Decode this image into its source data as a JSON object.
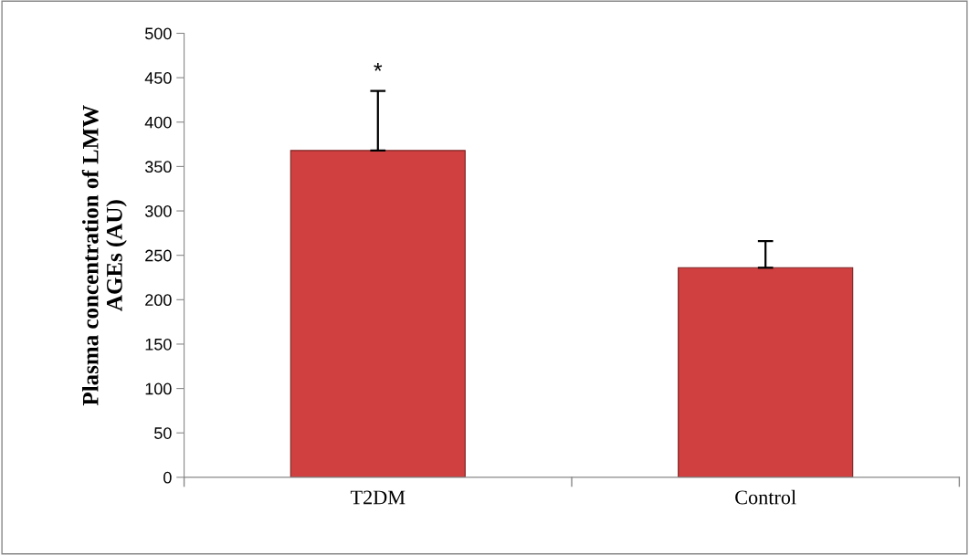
{
  "chart_data": {
    "type": "bar",
    "ylabel": "Plasma concentration of LMW\nAGEs (AU)",
    "categories": [
      "T2DM",
      "Control"
    ],
    "values": [
      368,
      236
    ],
    "errors": [
      [
        368,
        435
      ],
      [
        236,
        266
      ]
    ],
    "color": "#d04040",
    "ylim": [
      0,
      500
    ],
    "yticks": [
      0,
      50,
      100,
      150,
      200,
      250,
      300,
      350,
      400,
      450,
      500
    ],
    "grid": false,
    "annotations": [
      "*"
    ]
  }
}
